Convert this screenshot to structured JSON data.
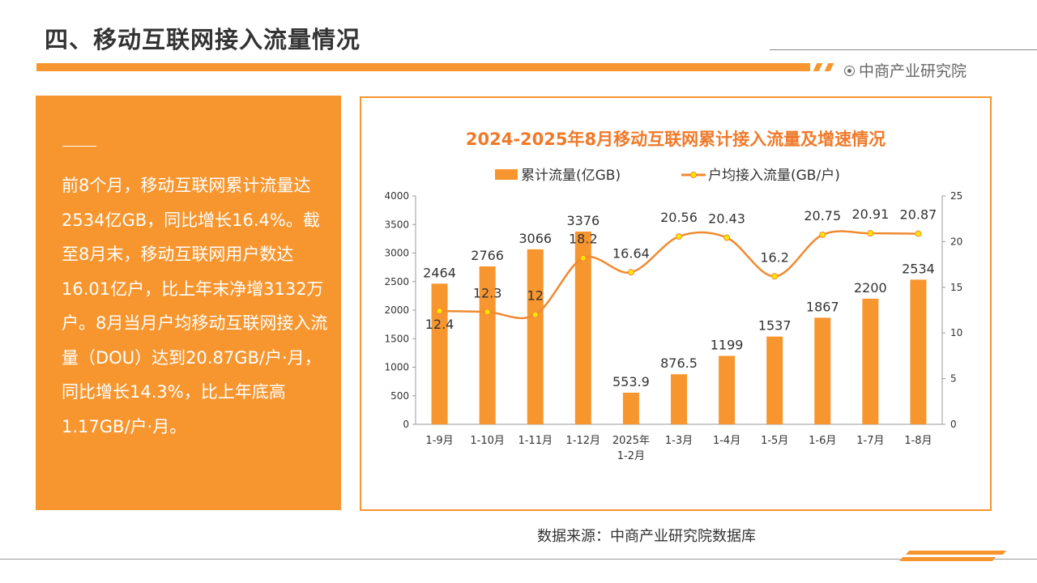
{
  "page_title": "四、移动互联网接入流量情况",
  "brand": "中商产业研究院",
  "summary": "前8个月，移动互联网累计流量达2534亿GB，同比增长16.4%。截至8月末，移动互联网用户数达16.01亿户，比上年末净增3132万户。8月当月户均移动互联网接入流量（DOU）达到20.87GB/户·月，同比增长14.3%，比上年底高1.17GB/户·月。",
  "source": "数据来源：中商产业研究院数据库",
  "colors": {
    "accent": "#f7962f",
    "title": "#f07a2a",
    "line": "#f08a30",
    "marker": "#ffe600"
  },
  "chart_data": {
    "type": "bar+line",
    "title": "2024-2025年8月移动互联网累计接入流量及增速情况",
    "categories": [
      "1-9月",
      "1-10月",
      "1-11月",
      "1-12月",
      "2025年\n1-2月",
      "1-3月",
      "1-4月",
      "1-5月",
      "1-6月",
      "1-7月",
      "1-8月"
    ],
    "series": [
      {
        "name": "累计流量(亿GB)",
        "type": "bar",
        "axis": "left",
        "values": [
          2464,
          2766,
          3066,
          3376,
          553.9,
          876.5,
          1199,
          1537,
          1867,
          2200,
          2534
        ],
        "labels": [
          "2464",
          "2766",
          "3066",
          "3376",
          "553.9",
          "876.5",
          "1199",
          "1537",
          "1867",
          "2200",
          "2534"
        ]
      },
      {
        "name": "户均接入流量(GB/户)",
        "type": "line",
        "axis": "right",
        "smooth": true,
        "values": [
          12.4,
          12.3,
          12,
          18.2,
          16.64,
          20.56,
          20.43,
          16.2,
          20.75,
          20.91,
          20.87
        ],
        "labels": [
          "12.4",
          "12.3",
          "12",
          "18.2",
          "16.64",
          "20.56",
          "20.43",
          "16.2",
          "20.75",
          "20.91",
          "20.87"
        ]
      }
    ],
    "y_left": {
      "range": [
        0,
        4000
      ],
      "ticks": [
        "0",
        "500",
        "1000",
        "1500",
        "2000",
        "2500",
        "3000",
        "3500",
        "4000"
      ]
    },
    "y_right": {
      "range": [
        0,
        25
      ],
      "ticks": [
        "0",
        "5",
        "10",
        "15",
        "20",
        "25"
      ]
    },
    "legend": "top",
    "grid": false
  }
}
